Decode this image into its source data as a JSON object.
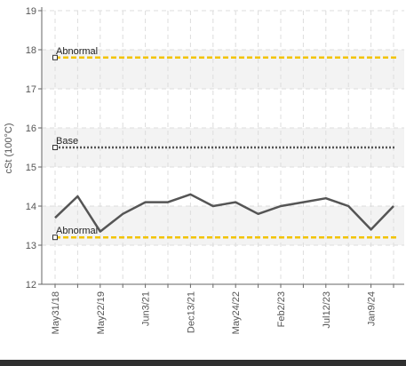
{
  "chart_data": {
    "type": "line",
    "title": "",
    "xlabel": "",
    "ylabel": "cSt (100°C)",
    "ylim": [
      12,
      19
    ],
    "yticks": [
      12,
      13,
      14,
      15,
      16,
      17,
      18,
      19
    ],
    "grid": true,
    "x_tick_labels": [
      "May31/18",
      "May22/19",
      "Jun3/21",
      "Dec13/21",
      "May24/22",
      "Feb2/23",
      "Jul12/23",
      "Jan9/24"
    ],
    "x_tick_index": [
      0,
      2,
      4,
      6,
      8,
      10,
      12,
      14
    ],
    "series": [
      {
        "color": "#555555",
        "values": [
          13.7,
          14.25,
          13.35,
          13.8,
          14.1,
          14.1,
          14.3,
          14.0,
          14.1,
          13.8,
          14.0,
          14.1,
          14.2,
          14.0,
          13.4,
          14.0
        ]
      }
    ],
    "reference_lines": [
      {
        "label": "Abnormal",
        "value": 17.8,
        "color": "#f2c300",
        "style": "dashed"
      },
      {
        "label": "Base",
        "value": 15.5,
        "color": "#555555",
        "style": "dotted"
      },
      {
        "label": "Abnormal",
        "value": 13.2,
        "color": "#f2c300",
        "style": "dashed"
      }
    ],
    "shaded_bands": [
      {
        "from": 17.0,
        "to": 18.0,
        "color": "#f3f3f3"
      },
      {
        "from": 15.0,
        "to": 16.0,
        "color": "#f3f3f3"
      },
      {
        "from": 13.0,
        "to": 14.0,
        "color": "#f3f3f3"
      }
    ]
  }
}
